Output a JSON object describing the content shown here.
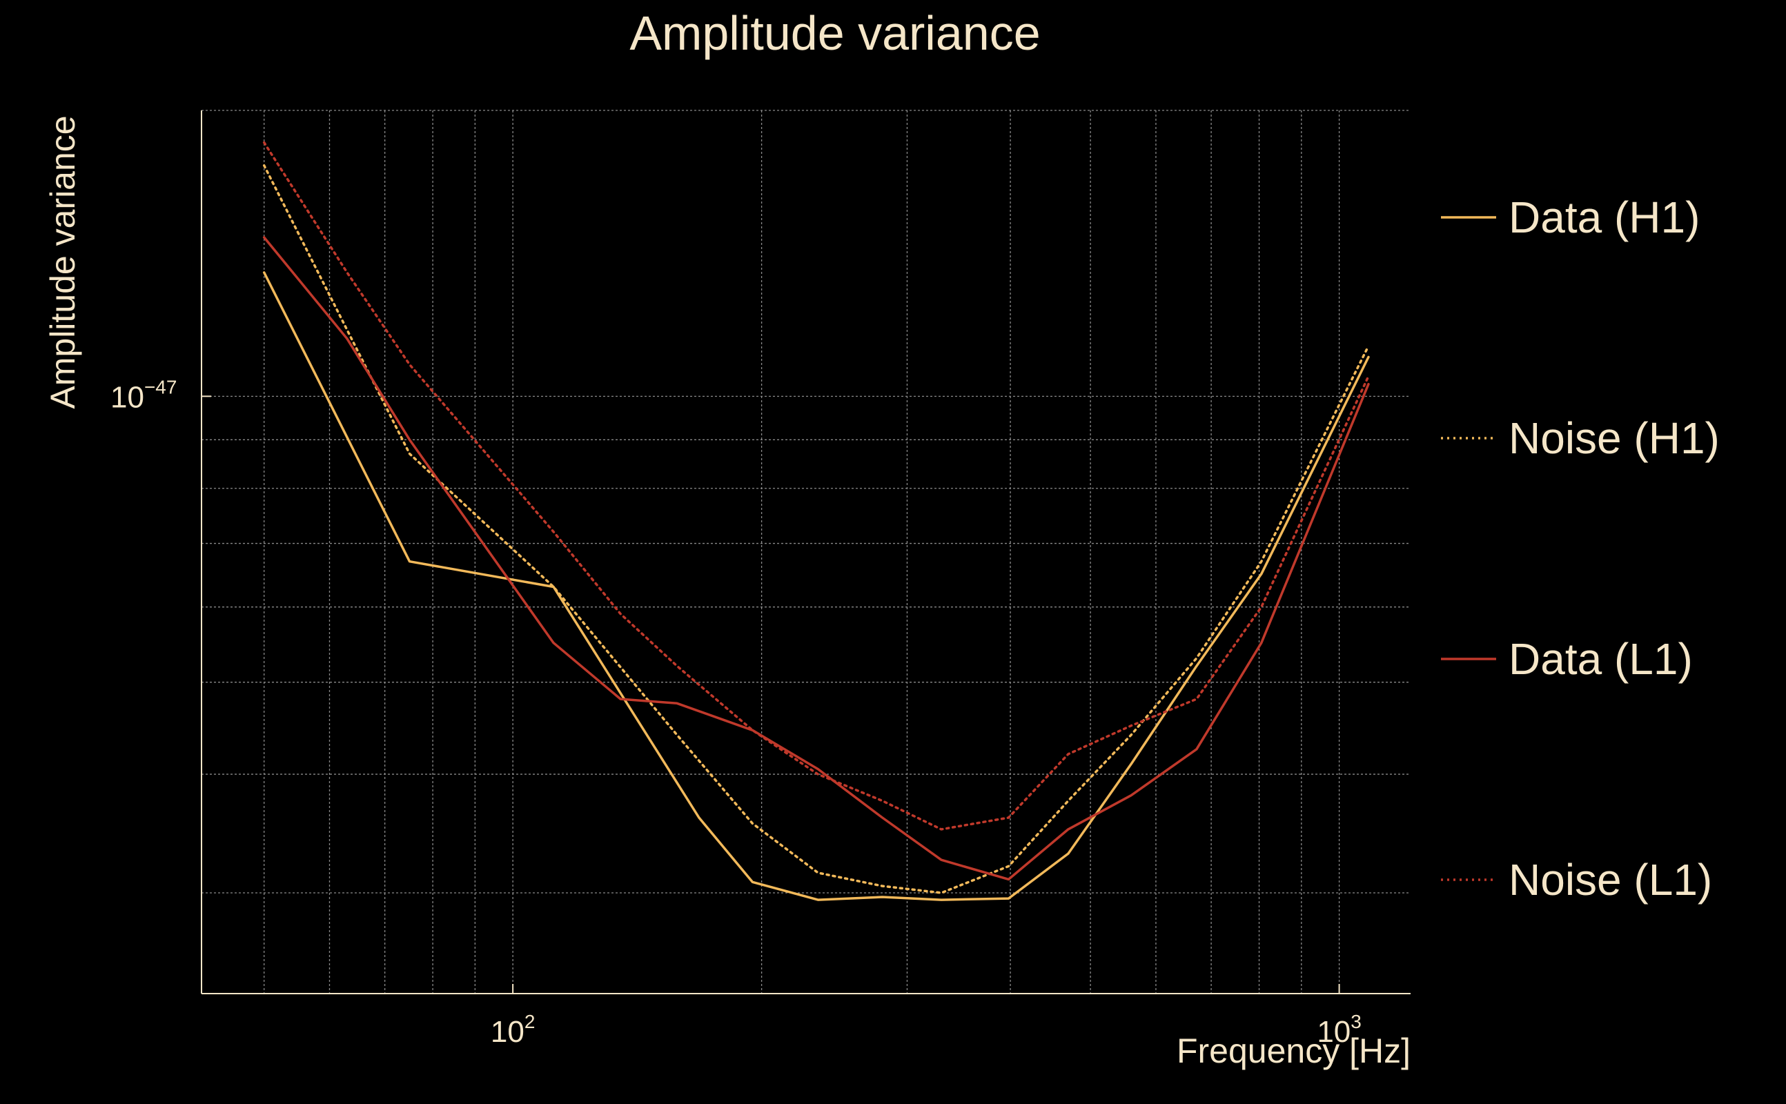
{
  "chart_data": {
    "type": "line",
    "title": "Amplitude variance",
    "xlabel": "Frequency [Hz]",
    "ylabel": "Amplitude variance",
    "xscale": "log",
    "yscale": "log",
    "xlim": [
      42,
      1220
    ],
    "ylim": [
      2.35e-48,
      2e-47
    ],
    "grid": true,
    "legend_position": "right",
    "x_ticks": [
      {
        "value": 100,
        "base": "10",
        "exp": "2"
      },
      {
        "value": 1000,
        "base": "10",
        "exp": "3"
      }
    ],
    "y_ticks": [
      {
        "value": 1e-47,
        "base": "10",
        "exp": "−47"
      }
    ],
    "series": [
      {
        "name": "Data (H1)",
        "color": "#f2b95a",
        "style": "solid",
        "x": [
          50,
          75,
          112,
          168,
          195,
          234,
          280,
          330,
          398,
          470,
          560,
          672,
          805,
          1085
        ],
        "y": [
          1.35e-47,
          6.7e-48,
          6.3e-48,
          3.6e-48,
          3.08e-48,
          2.95e-48,
          2.97e-48,
          2.95e-48,
          2.96e-48,
          3.3e-48,
          4.1e-48,
          5.2e-48,
          6.5e-48,
          1.1e-47
        ]
      },
      {
        "name": "Noise (H1)",
        "color": "#f2b95a",
        "style": "dotted",
        "x": [
          50,
          75,
          112,
          158,
          195,
          234,
          280,
          330,
          398,
          470,
          560,
          672,
          805,
          1085
        ],
        "y": [
          1.75e-47,
          8.7e-48,
          6.3e-48,
          4.4e-48,
          3.55e-48,
          3.15e-48,
          3.05e-48,
          3e-48,
          3.2e-48,
          3.75e-48,
          4.4e-48,
          5.3e-48,
          6.7e-48,
          1.13e-47
        ]
      },
      {
        "name": "Data (L1)",
        "color": "#c0392b",
        "style": "solid",
        "x": [
          50,
          63,
          75,
          112,
          135,
          158,
          195,
          234,
          280,
          330,
          398,
          470,
          560,
          672,
          805,
          1085
        ],
        "y": [
          1.47e-47,
          1.15e-47,
          9e-48,
          5.5e-48,
          4.8e-48,
          4.75e-48,
          4.45e-48,
          4.05e-48,
          3.6e-48,
          3.25e-48,
          3.1e-48,
          3.5e-48,
          3.8e-48,
          4.25e-48,
          5.5e-48,
          1.03e-47
        ]
      },
      {
        "name": "Noise (L1)",
        "color": "#c0392b",
        "style": "dotted",
        "x": [
          50,
          63,
          75,
          112,
          135,
          158,
          195,
          234,
          280,
          330,
          398,
          470,
          560,
          672,
          805,
          1085
        ],
        "y": [
          1.85e-47,
          1.35e-47,
          1.08e-47,
          7.2e-48,
          5.9e-48,
          5.2e-48,
          4.45e-48,
          4e-48,
          3.75e-48,
          3.5e-48,
          3.6e-48,
          4.2e-48,
          4.5e-48,
          4.8e-48,
          6e-48,
          1.05e-47
        ]
      }
    ]
  }
}
